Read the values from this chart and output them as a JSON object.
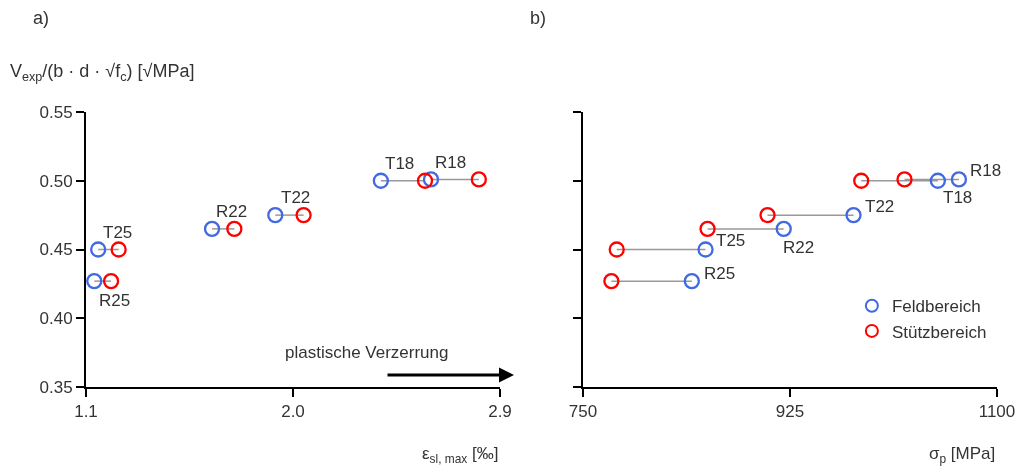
{
  "chart_data": [
    {
      "type": "scatter",
      "title": "a)",
      "ylabel": "V$_{exp}$/(b · d · √f$_{c}$) [√MPa]",
      "xlabel": "ε$_{sl, max}$ [‰]",
      "xlim": [
        1.1,
        2.9
      ],
      "xticks": [
        1.1,
        {
          "value": 2.0,
          "label": "2.0"
        },
        2.9
      ],
      "ylim": [
        0.35,
        0.55
      ],
      "yticks": [
        0.35,
        {
          "value": 0.4,
          "label": "0.40"
        },
        0.45,
        {
          "value": 0.5,
          "label": "0.50"
        },
        0.55
      ],
      "marker": "circle",
      "series": [
        {
          "type": "line",
          "marker": "none",
          "color": "#999999",
          "x": [
            1.153,
            1.242,
            null,
            1.136,
            1.209,
            null,
            1.648,
            1.745,
            null,
            1.923,
            2.046,
            null,
            2.382,
            2.574,
            null,
            2.6,
            2.808
          ],
          "values": [
            0.45,
            0.45,
            null,
            0.427,
            0.427,
            null,
            0.465,
            0.465,
            null,
            0.475,
            0.475,
            null,
            0.5,
            0.5,
            null,
            0.501,
            0.501
          ]
        },
        {
          "color": "#4169e1",
          "x": [
            1.153,
            1.136,
            1.648,
            1.923,
            2.382,
            2.6
          ],
          "values": [
            0.45,
            0.427,
            0.465,
            0.475,
            0.5,
            0.501
          ]
        },
        {
          "color": "#ff0000",
          "x": [
            1.242,
            1.209,
            1.745,
            2.046,
            2.574,
            2.808
          ],
          "values": [
            0.45,
            0.427,
            0.465,
            0.475,
            0.5,
            0.501
          ]
        }
      ],
      "annotations": [
        {
          "text": "T25",
          "x": 1.153,
          "y": 0.45
        },
        {
          "text": "R25",
          "x": 1.136,
          "y": 0.427
        },
        {
          "text": "R22",
          "x": 1.648,
          "y": 0.465
        },
        {
          "text": "T22",
          "x": 1.923,
          "y": 0.475
        },
        {
          "text": "T18",
          "x": 2.382,
          "y": 0.5
        },
        {
          "text": "R18",
          "x": 2.6,
          "y": 0.501
        },
        "plastische Verzerrung"
      ]
    },
    {
      "type": "scatter",
      "title": "b)",
      "xlabel": "σ$_{p}$ [MPa]",
      "xlim": [
        750,
        1100
      ],
      "xticks": [
        750,
        925,
        1100
      ],
      "ylim": [
        0.35,
        0.55
      ],
      "yticks": [
        0.35,
        0.4,
        0.45,
        0.5,
        0.55
      ],
      "tick_labels": "x",
      "marker": "circle",
      "legend": "bottom right",
      "series": [
        {
          "type": "line",
          "marker": "none",
          "color": "#999999",
          "x": [
            842,
            774,
            null,
            853.6,
            778.5,
            null,
            919.7,
            855.3,
            null,
            978.7,
            906,
            null,
            1050,
            985.2,
            null,
            1067.8,
            1021.8
          ],
          "values": [
            0.427,
            0.427,
            null,
            0.45,
            0.45,
            null,
            0.465,
            0.465,
            null,
            0.475,
            0.475,
            null,
            0.5,
            0.5,
            null,
            0.501,
            0.501
          ]
        },
        {
          "name": "Feldbereich",
          "color": "#4169e1",
          "x": [
            842,
            853.6,
            919.7,
            978.7,
            1050,
            1067.8
          ],
          "values": [
            0.427,
            0.45,
            0.465,
            0.475,
            0.5,
            0.501
          ]
        },
        {
          "name": "Stützbereich",
          "color": "#ff0000",
          "x": [
            774,
            778.5,
            855.3,
            906,
            985.2,
            1021.8
          ],
          "values": [
            0.427,
            0.45,
            0.465,
            0.475,
            0.5,
            0.501
          ]
        }
      ],
      "annotations": [
        {
          "text": "R25",
          "x": 842,
          "y": 0.427
        },
        {
          "text": "T25",
          "x": 853.6,
          "y": 0.45
        },
        {
          "text": "R22",
          "x": 919.7,
          "y": 0.465
        },
        {
          "text": "T22",
          "x": 978.7,
          "y": 0.475
        },
        {
          "text": "T18",
          "x": 1050,
          "y": 0.5
        },
        {
          "text": "R18",
          "x": 1067.8,
          "y": 0.501
        }
      ]
    }
  ]
}
